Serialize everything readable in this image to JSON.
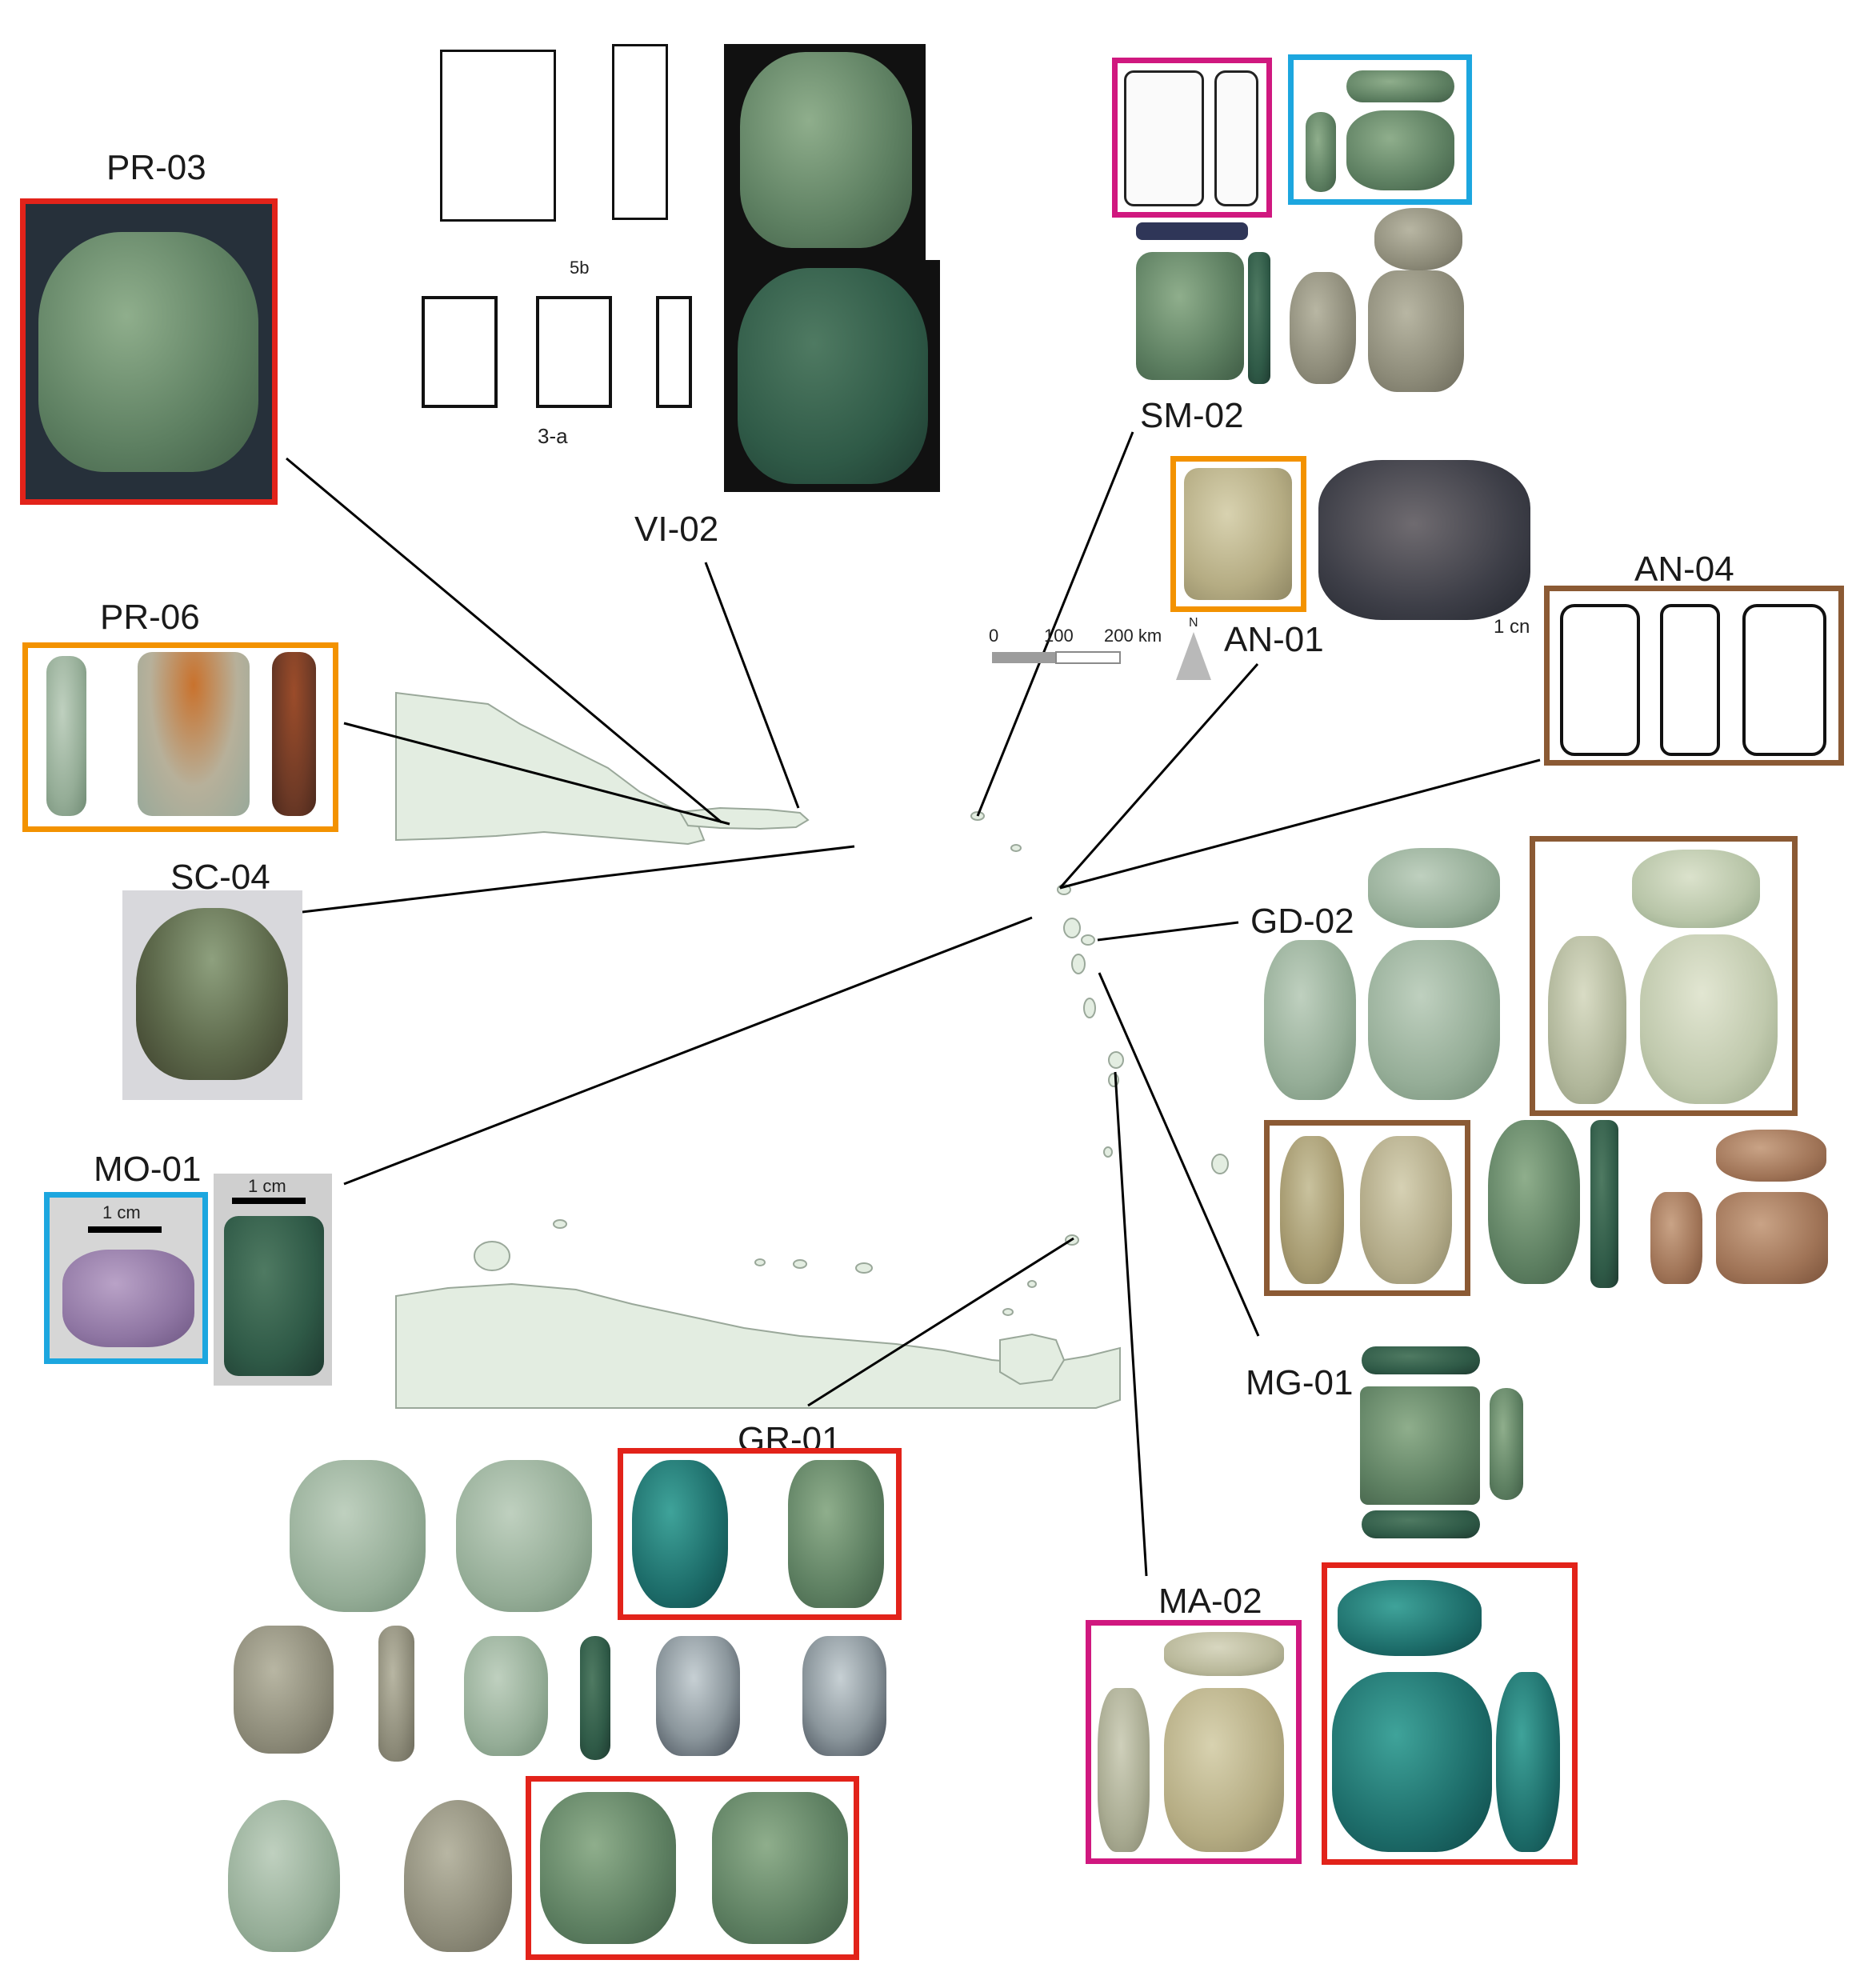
{
  "sites": {
    "pr03": "PR-03",
    "vi02": "VI-02",
    "pr06": "PR-06",
    "sc04": "SC-04",
    "mo01": "MO-01",
    "sm02": "SM-02",
    "an01": "AN-01",
    "an04": "AN-04",
    "gd02": "GD-02",
    "mg01": "MG-01",
    "gr01": "GR-01",
    "ma02": "MA-02"
  },
  "scale": {
    "mo01_left": "1 cm",
    "mo01_right": "1 cm",
    "an01_cut": "1 cn"
  },
  "map_scalebar": {
    "tick0": "0",
    "tick1": "100",
    "tick2": "200 km",
    "north": "N"
  },
  "drawing_marks": {
    "vi02_a": "5b",
    "vi02_b": "3-a"
  },
  "colors": {
    "red": "#e2231a",
    "orange": "#f39200",
    "blue": "#1ca6df",
    "magenta": "#d0187f",
    "brown": "#8b5a34",
    "land": "#e3ede1",
    "coast": "#9aa89a",
    "line": "#000000"
  }
}
